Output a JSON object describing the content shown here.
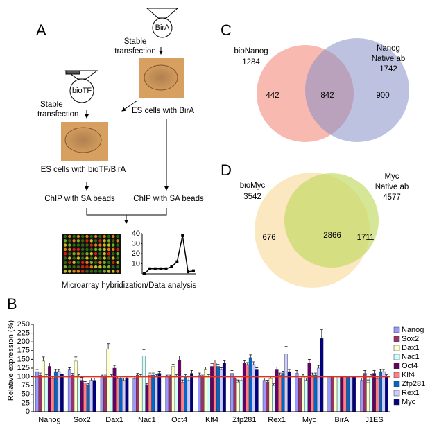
{
  "panel_a": {
    "letter": "A",
    "bira": "BirA",
    "biotf": "bioTF",
    "transfection_1": "Stable",
    "transfection_1b": "transfection",
    "transfection_2": "Stable",
    "transfection_2b": "transfection",
    "es_bira": "ES cells with BirA",
    "es_biotf": "ES cells with bioTF/BirA",
    "chip_1": "ChIP with SA beads",
    "chip_2": "ChIP with SA beads",
    "analysis": "Microarray hybridization/Data analysis",
    "mini_chart": {
      "values": [
        0,
        5,
        5,
        5,
        5,
        7,
        12,
        38,
        2,
        3
      ],
      "ylim": [
        0,
        40
      ],
      "yticks": [
        10,
        20,
        30,
        40
      ]
    }
  },
  "panel_c": {
    "letter": "C",
    "left_name": "bioNanog",
    "left_total": "1284",
    "right_name": "Nanog",
    "right_name_2": "Native ab",
    "right_total": "1742",
    "left_only": "442",
    "overlap": "842",
    "right_only": "900"
  },
  "panel_d": {
    "letter": "D",
    "left_name": "bioMyc",
    "left_total": "3542",
    "right_name": "Myc",
    "right_name_2": "Native ab",
    "right_total": "4577",
    "left_only": "676",
    "overlap": "2866",
    "right_only": "1711"
  },
  "chart_data": {
    "type": "bar",
    "panel_letter": "B",
    "y_label": "Relative expression (%)",
    "categories": [
      "Nanog",
      "Sox2",
      "Dax1",
      "Nac1",
      "Oct4",
      "Klf4",
      "Zfp281",
      "Rex1",
      "Myc",
      "BirA",
      "J1ES"
    ],
    "ylim": [
      0,
      250
    ],
    "yticks": [
      0,
      25,
      50,
      75,
      100,
      125,
      150,
      175,
      200,
      225,
      250
    ],
    "reference_line": 100,
    "reference_color": "#e03020",
    "series": [
      {
        "name": "Nanog",
        "color": "#9999ff",
        "values": [
          115,
          120,
          100,
          95,
          100,
          105,
          110,
          90,
          110,
          100,
          90
        ],
        "errors": [
          6,
          6,
          5,
          5,
          5,
          6,
          8,
          6,
          8,
          0,
          6
        ]
      },
      {
        "name": "Sox2",
        "color": "#993366",
        "values": [
          105,
          105,
          100,
          105,
          100,
          100,
          95,
          85,
          95,
          100,
          110
        ],
        "errors": [
          6,
          5,
          5,
          5,
          5,
          5,
          6,
          5,
          6,
          0,
          8
        ]
      },
      {
        "name": "Dax1",
        "color": "#ffffcc",
        "values": [
          145,
          145,
          180,
          100,
          130,
          120,
          85,
          95,
          100,
          100,
          85
        ],
        "errors": [
          12,
          12,
          15,
          6,
          6,
          8,
          6,
          6,
          6,
          0,
          6
        ]
      },
      {
        "name": "Nac1",
        "color": "#ccffff",
        "values": [
          100,
          100,
          100,
          160,
          100,
          100,
          90,
          75,
          90,
          100,
          100
        ],
        "errors": [
          6,
          6,
          6,
          18,
          6,
          6,
          6,
          5,
          6,
          0,
          6
        ]
      },
      {
        "name": "Oct4",
        "color": "#660066",
        "values": [
          130,
          90,
          125,
          75,
          148,
          130,
          140,
          120,
          140,
          100,
          110
        ],
        "errors": [
          10,
          8,
          8,
          6,
          12,
          8,
          6,
          8,
          10,
          0,
          8
        ]
      },
      {
        "name": "Klf4",
        "color": "#ff8080",
        "values": [
          95,
          80,
          95,
          105,
          85,
          140,
          135,
          105,
          105,
          100,
          95
        ],
        "errors": [
          6,
          6,
          6,
          6,
          6,
          8,
          6,
          6,
          6,
          0,
          6
        ]
      },
      {
        "name": "Zfp281",
        "color": "#0066cc",
        "values": [
          115,
          75,
          95,
          105,
          100,
          130,
          155,
          110,
          105,
          100,
          115
        ],
        "errors": [
          6,
          6,
          6,
          6,
          6,
          6,
          8,
          6,
          6,
          0,
          6
        ]
      },
      {
        "name": "Rex1",
        "color": "#ccccff",
        "values": [
          115,
          90,
          90,
          100,
          90,
          120,
          135,
          165,
          125,
          100,
          115
        ],
        "errors": [
          6,
          6,
          6,
          6,
          6,
          6,
          8,
          22,
          8,
          0,
          6
        ]
      },
      {
        "name": "Myc",
        "color": "#000080",
        "values": [
          108,
          90,
          95,
          110,
          110,
          140,
          120,
          115,
          210,
          100,
          100
        ],
        "errors": [
          6,
          6,
          6,
          6,
          8,
          6,
          6,
          6,
          25,
          0,
          6
        ]
      }
    ]
  }
}
